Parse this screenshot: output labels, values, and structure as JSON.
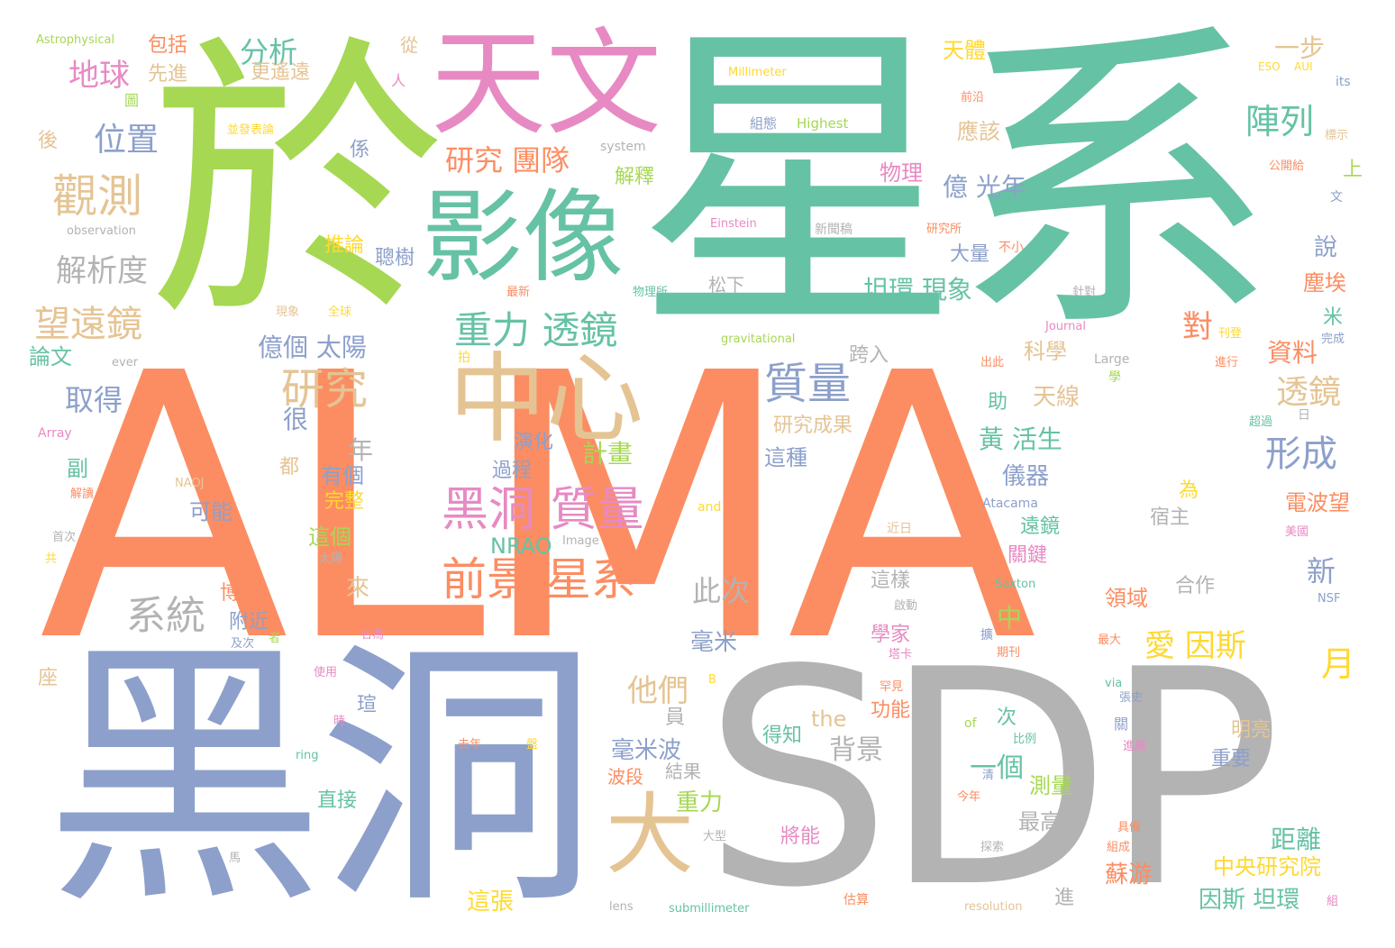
{
  "palette": {
    "green": "#66c2a5",
    "orange": "#fc8d62",
    "blue": "#8da0cb",
    "pink": "#e78ac3",
    "lime": "#a6d854",
    "yellow": "#ffd92f",
    "tan": "#e5c494",
    "gray": "#b3b3b3"
  },
  "words": [
    {
      "text": "ALMA",
      "color": "orange"
    },
    {
      "text": "星系",
      "color": "green"
    },
    {
      "text": "於",
      "color": "lime"
    },
    {
      "text": "黑洞",
      "color": "blue"
    },
    {
      "text": "SDP",
      "color": "gray"
    },
    {
      "text": "天文",
      "color": "pink"
    },
    {
      "text": "影像",
      "color": "green"
    },
    {
      "text": "中心",
      "color": "tan"
    },
    {
      "text": "大",
      "color": "tan"
    },
    {
      "text": "黑洞 質量",
      "color": "pink"
    },
    {
      "text": "前景 星系",
      "color": "orange"
    },
    {
      "text": "重力 透鏡",
      "color": "green"
    },
    {
      "text": "質量",
      "color": "blue"
    },
    {
      "text": "觀測",
      "color": "tan"
    },
    {
      "text": "望遠鏡",
      "color": "tan"
    },
    {
      "text": "研究",
      "color": "tan"
    },
    {
      "text": "系統",
      "color": "gray"
    },
    {
      "text": "地球",
      "color": "pink"
    },
    {
      "text": "位置",
      "color": "blue"
    },
    {
      "text": "分析",
      "color": "green"
    },
    {
      "text": "解析度",
      "color": "gray"
    },
    {
      "text": "研究 團隊",
      "color": "orange"
    },
    {
      "text": "形成",
      "color": "blue"
    },
    {
      "text": "陣列",
      "color": "green"
    },
    {
      "text": "透鏡",
      "color": "tan"
    },
    {
      "text": "愛 因斯",
      "color": "yellow"
    },
    {
      "text": "坦環 現象",
      "color": "green"
    },
    {
      "text": "億 光年",
      "color": "blue"
    },
    {
      "text": "他們",
      "color": "tan"
    },
    {
      "text": "月",
      "color": "yellow"
    },
    {
      "text": "取得",
      "color": "blue"
    },
    {
      "text": "億個 太陽",
      "color": "blue"
    },
    {
      "text": "此次",
      "color": "gray"
    },
    {
      "text": "一步",
      "color": "tan"
    },
    {
      "text": "資料",
      "color": "orange"
    },
    {
      "text": "新",
      "color": "blue"
    },
    {
      "text": "對",
      "color": "orange"
    },
    {
      "text": "NRAO",
      "color": "green"
    },
    {
      "text": "一個",
      "color": "green"
    },
    {
      "text": "背景",
      "color": "gray"
    },
    {
      "text": "黃 活生",
      "color": "green"
    },
    {
      "text": "儀器",
      "color": "blue"
    },
    {
      "text": "計畫",
      "color": "lime"
    },
    {
      "text": "毫米波",
      "color": "blue"
    },
    {
      "text": "毫米",
      "color": "blue"
    },
    {
      "text": "因斯 坦環",
      "color": "green"
    },
    {
      "text": "中央研究院",
      "color": "yellow"
    },
    {
      "text": "距離",
      "color": "green"
    },
    {
      "text": "這張",
      "color": "yellow"
    },
    {
      "text": "蘇游",
      "color": "orange"
    },
    {
      "text": "重力",
      "color": "lime"
    },
    {
      "text": "最高",
      "color": "gray"
    },
    {
      "text": "測量",
      "color": "lime"
    },
    {
      "text": "天線",
      "color": "tan"
    },
    {
      "text": "科學",
      "color": "tan"
    },
    {
      "text": "演化",
      "color": "blue"
    },
    {
      "text": "過程",
      "color": "blue"
    },
    {
      "text": "研究成果",
      "color": "tan"
    },
    {
      "text": "這種",
      "color": "blue"
    },
    {
      "text": "有個",
      "color": "blue"
    },
    {
      "text": "完整",
      "color": "yellow"
    },
    {
      "text": "這個",
      "color": "lime"
    },
    {
      "text": "年",
      "color": "gray"
    },
    {
      "text": "很",
      "color": "blue"
    },
    {
      "text": "都",
      "color": "tan"
    },
    {
      "text": "可能",
      "color": "blue"
    },
    {
      "text": "副",
      "color": "green"
    },
    {
      "text": "論文",
      "color": "green"
    },
    {
      "text": "包括",
      "color": "orange"
    },
    {
      "text": "先進",
      "color": "tan"
    },
    {
      "text": "更遙遠",
      "color": "tan"
    },
    {
      "text": "天體",
      "color": "yellow"
    },
    {
      "text": "應該",
      "color": "tan"
    },
    {
      "text": "解釋",
      "color": "lime"
    },
    {
      "text": "物理",
      "color": "pink"
    },
    {
      "text": "推論",
      "color": "yellow"
    },
    {
      "text": "聰樹",
      "color": "blue"
    },
    {
      "text": "松下",
      "color": "gray"
    },
    {
      "text": "大量",
      "color": "blue"
    },
    {
      "text": "說",
      "color": "blue"
    },
    {
      "text": "塵埃",
      "color": "orange"
    },
    {
      "text": "米",
      "color": "green"
    },
    {
      "text": "上",
      "color": "lime"
    },
    {
      "text": "跨入",
      "color": "gray"
    },
    {
      "text": "助",
      "color": "green"
    },
    {
      "text": "電波望",
      "color": "orange"
    },
    {
      "text": "為",
      "color": "yellow"
    },
    {
      "text": "宿主",
      "color": "gray"
    },
    {
      "text": "遠鏡",
      "color": "green"
    },
    {
      "text": "關鍵",
      "color": "pink"
    },
    {
      "text": "合作",
      "color": "gray"
    },
    {
      "text": "領域",
      "color": "orange"
    },
    {
      "text": "內",
      "color": "orange"
    },
    {
      "text": "這樣",
      "color": "gray"
    },
    {
      "text": "中",
      "color": "lime"
    },
    {
      "text": "博士",
      "color": "orange"
    },
    {
      "text": "附近",
      "color": "blue"
    },
    {
      "text": "來",
      "color": "tan"
    },
    {
      "text": "學家",
      "color": "pink"
    },
    {
      "text": "功能",
      "color": "orange"
    },
    {
      "text": "得知",
      "color": "green"
    },
    {
      "text": "the",
      "color": "tan"
    },
    {
      "text": "員",
      "color": "gray"
    },
    {
      "text": "結果",
      "color": "gray"
    },
    {
      "text": "波段",
      "color": "orange"
    },
    {
      "text": "將能",
      "color": "pink"
    },
    {
      "text": "直接",
      "color": "green"
    },
    {
      "text": "次",
      "color": "green"
    },
    {
      "text": "明亮",
      "color": "tan"
    },
    {
      "text": "重要",
      "color": "blue"
    },
    {
      "text": "進",
      "color": "gray"
    },
    {
      "text": "座",
      "color": "tan"
    },
    {
      "text": "後",
      "color": "tan"
    },
    {
      "text": "係",
      "color": "blue"
    },
    {
      "text": "瑄",
      "color": "blue"
    },
    {
      "text": "Astrophysical",
      "color": "lime"
    },
    {
      "text": "observation",
      "color": "gray"
    },
    {
      "text": "Millimeter",
      "color": "yellow"
    },
    {
      "text": "組態",
      "color": "blue"
    },
    {
      "text": "Highest",
      "color": "lime"
    },
    {
      "text": "system",
      "color": "gray"
    },
    {
      "text": "Einstein",
      "color": "pink"
    },
    {
      "text": "新聞稿",
      "color": "gray"
    },
    {
      "text": "研究所",
      "color": "orange"
    },
    {
      "text": "不小",
      "color": "orange"
    },
    {
      "text": "前沿",
      "color": "orange"
    },
    {
      "text": "從",
      "color": "tan"
    },
    {
      "text": "人",
      "color": "pink"
    },
    {
      "text": "圖",
      "color": "lime"
    },
    {
      "text": "並發表論",
      "color": "yellow"
    },
    {
      "text": "ESO",
      "color": "yellow"
    },
    {
      "text": "AUI",
      "color": "yellow"
    },
    {
      "text": "its",
      "color": "blue"
    },
    {
      "text": "標示",
      "color": "tan"
    },
    {
      "text": "公開給",
      "color": "orange"
    },
    {
      "text": "文",
      "color": "blue"
    },
    {
      "text": "最新",
      "color": "orange"
    },
    {
      "text": "物理所",
      "color": "green"
    },
    {
      "text": "針對",
      "color": "gray"
    },
    {
      "text": "Journal",
      "color": "pink"
    },
    {
      "text": "刊登",
      "color": "yellow"
    },
    {
      "text": "完成",
      "color": "blue"
    },
    {
      "text": "gravitational",
      "color": "lime"
    },
    {
      "text": "現象",
      "color": "tan"
    },
    {
      "text": "全球",
      "color": "yellow"
    },
    {
      "text": "ever",
      "color": "gray"
    },
    {
      "text": "拍",
      "color": "yellow"
    },
    {
      "text": "Large",
      "color": "gray"
    },
    {
      "text": "學",
      "color": "lime"
    },
    {
      "text": "出此",
      "color": "orange"
    },
    {
      "text": "進行",
      "color": "orange"
    },
    {
      "text": "日",
      "color": "gray"
    },
    {
      "text": "超過",
      "color": "green"
    },
    {
      "text": "Array",
      "color": "pink"
    },
    {
      "text": "NAOJ",
      "color": "tan"
    },
    {
      "text": "解讀",
      "color": "orange"
    },
    {
      "text": "and",
      "color": "yellow"
    },
    {
      "text": "Atacama",
      "color": "blue"
    },
    {
      "text": "Image",
      "color": "gray"
    },
    {
      "text": "首次",
      "color": "gray"
    },
    {
      "text": "共",
      "color": "yellow"
    },
    {
      "text": "太陽",
      "color": "gray"
    },
    {
      "text": "近日",
      "color": "tan"
    },
    {
      "text": "Saxton",
      "color": "green"
    },
    {
      "text": "美國",
      "color": "pink"
    },
    {
      "text": "NSF",
      "color": "blue"
    },
    {
      "text": "及次",
      "color": "blue"
    },
    {
      "text": "者",
      "color": "lime"
    },
    {
      "text": "名為",
      "color": "pink"
    },
    {
      "text": "啟動",
      "color": "gray"
    },
    {
      "text": "塔卡",
      "color": "pink"
    },
    {
      "text": "擴",
      "color": "blue"
    },
    {
      "text": "期刊",
      "color": "orange"
    },
    {
      "text": "最大",
      "color": "orange"
    },
    {
      "text": "使用",
      "color": "pink"
    },
    {
      "text": "B",
      "color": "yellow"
    },
    {
      "text": "罕見",
      "color": "orange"
    },
    {
      "text": "via",
      "color": "green"
    },
    {
      "text": "張史",
      "color": "blue"
    },
    {
      "text": "時",
      "color": "pink"
    },
    {
      "text": "of",
      "color": "lime"
    },
    {
      "text": "關",
      "color": "blue"
    },
    {
      "text": "比例",
      "color": "green"
    },
    {
      "text": "進展",
      "color": "pink"
    },
    {
      "text": "去年",
      "color": "orange"
    },
    {
      "text": "盤",
      "color": "yellow"
    },
    {
      "text": "ring",
      "color": "green"
    },
    {
      "text": "清",
      "color": "blue"
    },
    {
      "text": "今年",
      "color": "orange"
    },
    {
      "text": "具備",
      "color": "orange"
    },
    {
      "text": "組成",
      "color": "orange"
    },
    {
      "text": "大型",
      "color": "gray"
    },
    {
      "text": "探索",
      "color": "gray"
    },
    {
      "text": "馬",
      "color": "gray"
    },
    {
      "text": "lens",
      "color": "gray"
    },
    {
      "text": "submillimeter",
      "color": "green"
    },
    {
      "text": "估算",
      "color": "orange"
    },
    {
      "text": "resolution",
      "color": "tan"
    },
    {
      "text": "組",
      "color": "pink"
    }
  ]
}
